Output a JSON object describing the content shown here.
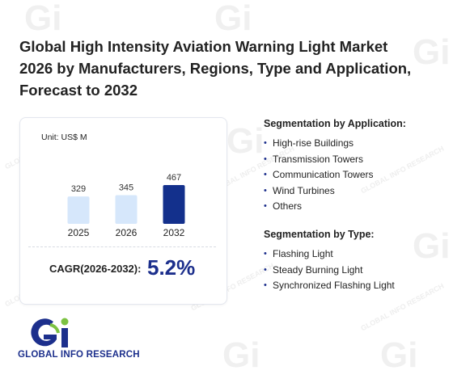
{
  "report": {
    "title_line1": "Global High Intensity Aviation Warning Light Market",
    "title_line2": "2026 by Manufacturers, Regions, Type and Application,",
    "title_line3": "Forecast to 2032"
  },
  "chart_card": {
    "unit": "Unit: US$ M",
    "cagr_label": "CAGR(2026-2032):",
    "cagr_value": "5.2%"
  },
  "chart_data": {
    "type": "bar",
    "categories": [
      "2025",
      "2026",
      "2032"
    ],
    "values": [
      329,
      345,
      467
    ],
    "bar_colors": [
      "#d6e7fb",
      "#d6e7fb",
      "#13308c"
    ],
    "unit": "US$ M"
  },
  "segmentation_application": {
    "title": "Segmentation by Application:",
    "items": [
      "High-rise Buildings",
      "Transmission Towers",
      "Communication Towers",
      "Wind Turbines",
      "Others"
    ]
  },
  "segmentation_type": {
    "title": "Segmentation by Type:",
    "items": [
      "Flashing Light",
      "Steady Burning Light",
      "Synchronized Flashing Light"
    ]
  },
  "logo": {
    "text": "GLOBAL INFO RESEARCH",
    "colors": {
      "blue": "#1c2f8c",
      "green": "#7cc242"
    }
  },
  "watermark": {
    "text": "GLOBAL INFO RESEARCH"
  }
}
